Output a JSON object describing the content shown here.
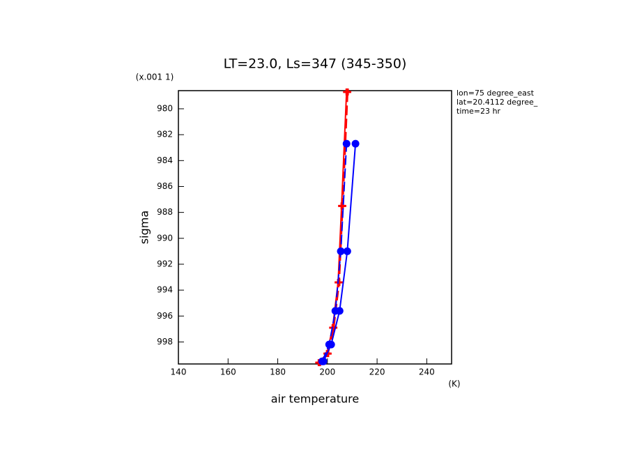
{
  "chart_data": {
    "type": "line",
    "title": "LT=23.0, Ls=347 (345-350)",
    "x_label": "air temperature",
    "x_unit": "(K)",
    "y_label": "sigma",
    "y_unit": "(x.001 1)",
    "annotations": [
      "lon=75 degree_east",
      "lat=20.4112 degree_",
      "time=23 hr"
    ],
    "xlim": [
      140,
      250
    ],
    "xticks": [
      140,
      160,
      180,
      200,
      220,
      240
    ],
    "ylim": [
      999.7,
      978.6
    ],
    "yticks": [
      980,
      982,
      984,
      986,
      988,
      990,
      992,
      994,
      996,
      998
    ],
    "series": [
      {
        "color": "#ff0000",
        "dash": false,
        "marker": "plus",
        "x": [
          196.5,
          199.8,
          202.1,
          204.3,
          205.7,
          207.7
        ],
        "values": [
          999.6,
          998.9,
          996.9,
          993.4,
          987.5,
          978.7
        ]
      },
      {
        "color": "#ff0000",
        "dash": true,
        "marker": "plus",
        "x": [
          197.0,
          200.3,
          202.6,
          204.8,
          206.2,
          208.2
        ],
        "values": [
          999.6,
          998.9,
          996.9,
          993.4,
          987.5,
          978.7
        ]
      },
      {
        "color": "#0000ff",
        "dash": false,
        "marker": "circle",
        "x": [
          198.4,
          201.5,
          204.9,
          208.0,
          211.3
        ],
        "values": [
          999.5,
          998.2,
          995.6,
          991.0,
          982.7
        ]
      },
      {
        "color": "#0000ff",
        "dash": true,
        "marker": "circle",
        "x": [
          197.9,
          200.7,
          203.2,
          205.4,
          207.7
        ],
        "values": [
          999.5,
          998.2,
          995.6,
          991.0,
          982.7
        ]
      }
    ]
  }
}
